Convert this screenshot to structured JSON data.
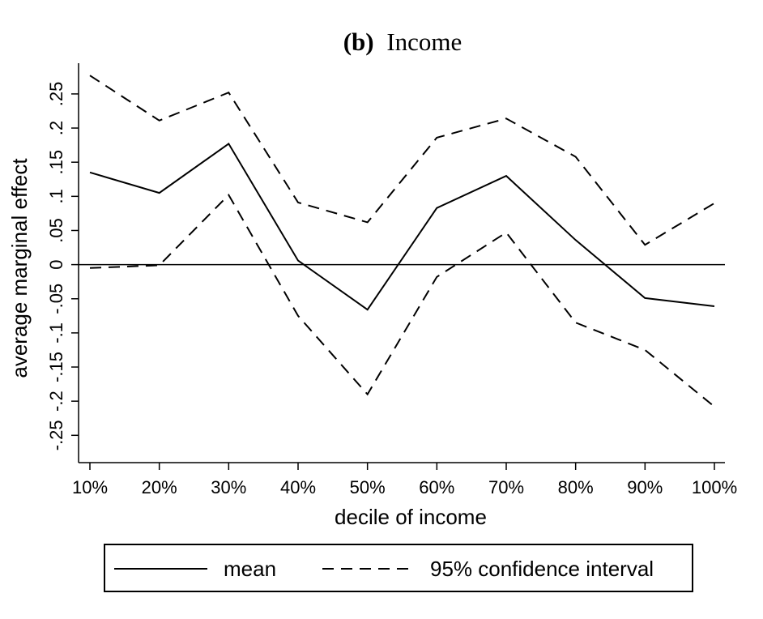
{
  "chart_data": {
    "type": "line",
    "title_prefix": "(b)",
    "title": "Income",
    "xlabel": "decile of income",
    "ylabel": "average marginal effect",
    "categories": [
      "10%",
      "20%",
      "30%",
      "40%",
      "50%",
      "60%",
      "70%",
      "80%",
      "90%",
      "100%"
    ],
    "yticks": [
      "-.25",
      "-.2",
      "-.15",
      "-.1",
      "-.05",
      "0",
      ".05",
      ".1",
      ".15",
      ".2",
      ".25"
    ],
    "ylim": [
      -0.29,
      0.295
    ],
    "reference_line": 0,
    "series": [
      {
        "name": "mean",
        "style": "solid",
        "values": [
          0.135,
          0.105,
          0.177,
          0.006,
          -0.066,
          0.083,
          0.13,
          0.036,
          -0.049,
          -0.061
        ]
      },
      {
        "name": "95% confidence interval",
        "style": "dashed",
        "values": [
          0.277,
          0.211,
          0.252,
          0.091,
          0.062,
          0.186,
          0.214,
          0.158,
          0.029,
          0.09
        ]
      },
      {
        "name": "95% confidence interval",
        "style": "dashed",
        "values": [
          -0.005,
          -0.001,
          0.102,
          -0.075,
          -0.19,
          -0.018,
          0.047,
          -0.085,
          -0.125,
          -0.208
        ]
      }
    ],
    "legend": {
      "placement": "bottom",
      "items": [
        {
          "label": "mean",
          "style": "solid"
        },
        {
          "label": "95% confidence interval",
          "style": "dashed"
        }
      ]
    },
    "grid": false
  }
}
